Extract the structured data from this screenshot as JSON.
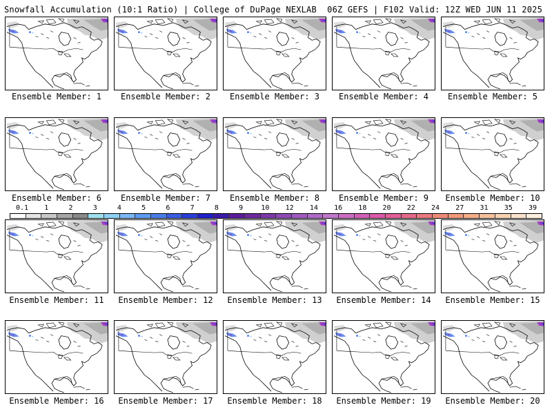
{
  "header": {
    "left": "Snowfall Accumulation (10:1 Ratio) | College of DuPage NEXLAB",
    "right": "06Z GEFS | F102 Valid: 12Z WED JUN 11 2025"
  },
  "members": [
    "Ensemble Member: 1",
    "Ensemble Member: 2",
    "Ensemble Member: 3",
    "Ensemble Member: 4",
    "Ensemble Member: 5",
    "Ensemble Member: 6",
    "Ensemble Member: 7",
    "Ensemble Member: 8",
    "Ensemble Member: 9",
    "Ensemble Member: 10",
    "Ensemble Member: 11",
    "Ensemble Member: 12",
    "Ensemble Member: 13",
    "Ensemble Member: 14",
    "Ensemble Member: 15",
    "Ensemble Member: 16",
    "Ensemble Member: 17",
    "Ensemble Member: 18",
    "Ensemble Member: 19",
    "Ensemble Member: 20"
  ],
  "scale": {
    "labels": [
      "0.1",
      "1",
      "2",
      "3",
      "4",
      "5",
      "6",
      "7",
      "8",
      "9",
      "10",
      "12",
      "14",
      "16",
      "18",
      "20",
      "22",
      "24",
      "27",
      "31",
      "35",
      "39"
    ],
    "colors": [
      "#ffffff",
      "#e6e6e6",
      "#c8c8c8",
      "#a6a6a6",
      "#8a8a8a",
      "#9fe0ef",
      "#8fd0f5",
      "#7ab8f5",
      "#5f9cf0",
      "#4a7de8",
      "#3a5de0",
      "#2a3ed8",
      "#2020c8",
      "#3a1aa8",
      "#5a1e9a",
      "#6e2b9e",
      "#7d3aa8",
      "#8e4ab5",
      "#a05cc0",
      "#b06ac8",
      "#c079cc",
      "#cc6ec4",
      "#d060b8",
      "#d85aa8",
      "#e0609a",
      "#e46b8c",
      "#e87a80",
      "#ec8a78",
      "#f09a7a",
      "#f3ad88",
      "#f5c09c",
      "#f7d2b2",
      "#fae3cc",
      "#fcefe0"
    ]
  }
}
